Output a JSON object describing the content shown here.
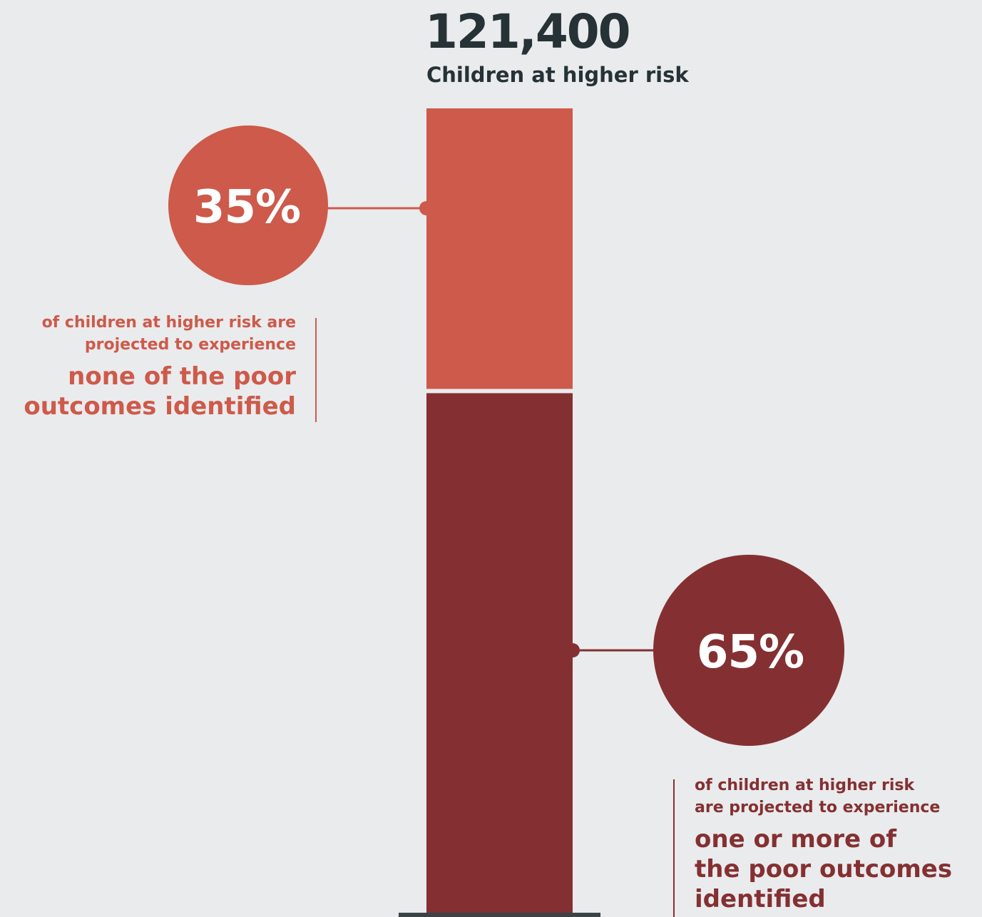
{
  "colors": {
    "background": "#eaebed",
    "segment_none": "#cd5a4a",
    "segment_one_or_more": "#843032",
    "title_text": "#263236",
    "baseline": "#3b4346"
  },
  "header": {
    "total_value": "121,400",
    "total_label": "Children at higher risk"
  },
  "chart_data": {
    "type": "bar",
    "stacked": true,
    "total": 121400,
    "categories": [
      "Children at higher risk"
    ],
    "series": [
      {
        "name": "none of the poor outcomes identified",
        "value_percent": 35,
        "label": "35%"
      },
      {
        "name": "one or more of the poor outcomes identified",
        "value_percent": 65,
        "label": "65%"
      }
    ]
  },
  "callouts": {
    "top": {
      "percent_label": "35%",
      "small_line1": "of children at higher risk are",
      "small_line2": "projected to experience",
      "big_line1": "none of the poor",
      "big_line2": "outcomes identified"
    },
    "bottom": {
      "percent_label": "65%",
      "small_line1": "of children at higher risk",
      "small_line2": "are projected to experience",
      "big_line1": "one or more of",
      "big_line2": "the poor outcomes",
      "big_line3": "identified"
    }
  }
}
